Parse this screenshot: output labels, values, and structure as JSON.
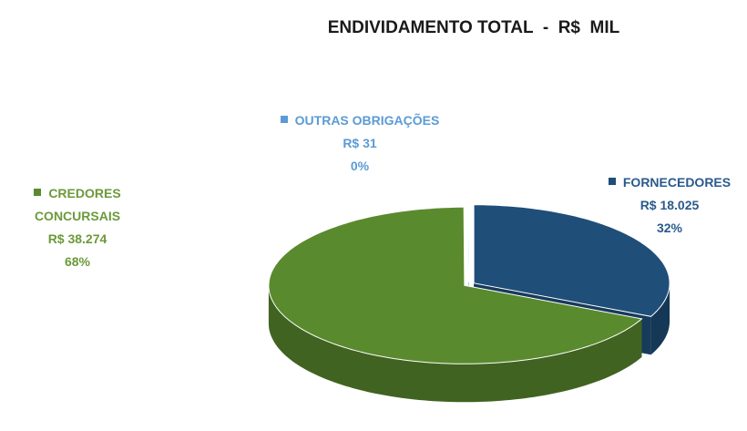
{
  "chart_data": {
    "type": "pie3d",
    "title": "ENDIVIDAMENTO TOTAL  -  R$  MIL",
    "categories": [
      "FORNECEDORES",
      "CREDORES CONCURSAIS",
      "OUTRAS OBRIGAÇÕES"
    ],
    "values": [
      18025,
      38274,
      31
    ],
    "value_labels": [
      "R$ 18.025",
      "R$ 38.274",
      "R$ 31"
    ],
    "percentages": [
      32,
      68,
      0
    ],
    "percentage_labels": [
      "32%",
      "68%",
      "0%"
    ],
    "colors": [
      "#1f4e79",
      "#5a8a2e",
      "#5b9bd5"
    ],
    "label_colors": [
      "#2a5a8c",
      "#6b9a3a",
      "#5b9bd5"
    ]
  }
}
